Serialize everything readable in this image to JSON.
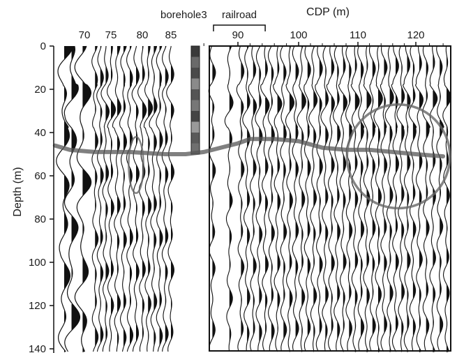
{
  "chart_data": {
    "type": "seismic section",
    "xlabel": "CDP (m)",
    "ylabel": "Depth (m)",
    "x_ticks": [
      70,
      75,
      80,
      85,
      90,
      100,
      110,
      120
    ],
    "y_ticks": [
      0,
      20,
      40,
      60,
      80,
      100,
      120,
      140
    ],
    "ylim": [
      0,
      150
    ],
    "y_inverted": true,
    "annotations": {
      "borehole": "borehole3",
      "railroad": "railroad"
    },
    "traces_left_sparse": [
      64.5,
      66.5,
      69.5
    ],
    "traces_left_dense": [
      72,
      73,
      74,
      75,
      76,
      77,
      78,
      79,
      80,
      81,
      82,
      83,
      84,
      85
    ],
    "traces_right": [
      88.5,
      89.5,
      90.5,
      91.5,
      92.5,
      93.5,
      94.5,
      95.5,
      96.5,
      97.5,
      98.5,
      99.5,
      100.5,
      101.5,
      102.5,
      103.5,
      104.5,
      105.5,
      106.5,
      107.5,
      108.5,
      109.5,
      110.5,
      111.5,
      112.5,
      113.5,
      114.5,
      115.5,
      116.5,
      117.5,
      118.5,
      119.5,
      120.5,
      121.5,
      122.5,
      123.5,
      124.5
    ],
    "reflector_line": [
      [
        62,
        46
      ],
      [
        66,
        48
      ],
      [
        72,
        49
      ],
      [
        78,
        49
      ],
      [
        84,
        50
      ],
      [
        86,
        50
      ],
      [
        88,
        49
      ],
      [
        90,
        45
      ],
      [
        92,
        43
      ],
      [
        96,
        43
      ],
      [
        100,
        44
      ],
      [
        104,
        47
      ],
      [
        108,
        48
      ],
      [
        112,
        48
      ],
      [
        116,
        49
      ],
      [
        120,
        50
      ],
      [
        124,
        51
      ]
    ],
    "anomaly_circle_large": {
      "cdp": 117,
      "depth": 51,
      "radius_cdp": 8,
      "radius_depth": 24
    },
    "anomaly_ellipse_small": {
      "cdp": 79,
      "depth": 55,
      "radius_cdp": 1.2,
      "radius_depth": 13
    },
    "borehole_interval": [
      0,
      50
    ],
    "railroad_span": [
      87.5,
      94.5
    ]
  }
}
